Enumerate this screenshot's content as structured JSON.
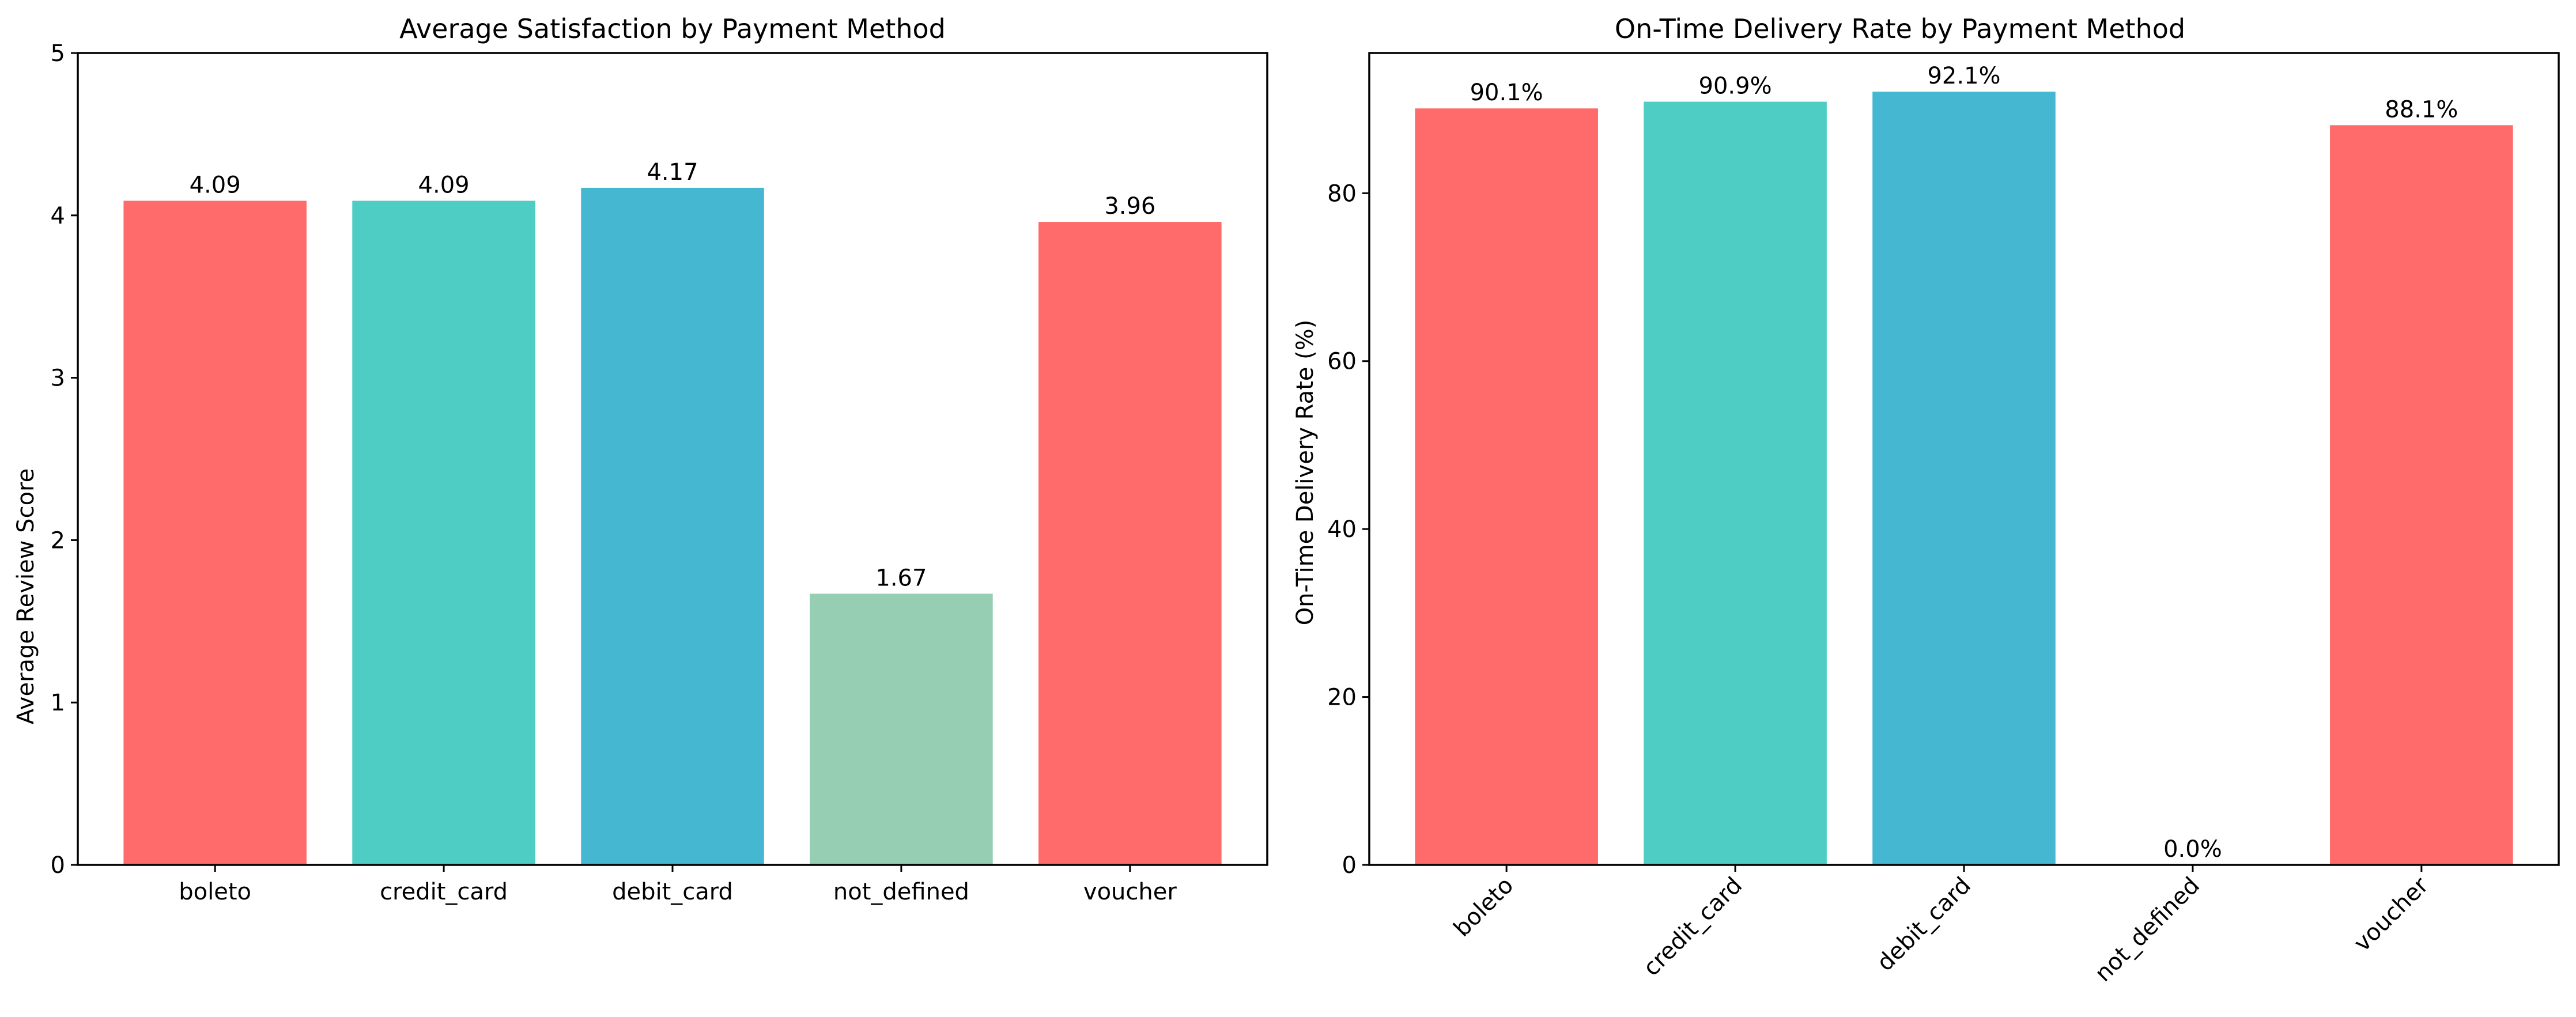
{
  "chart_data": [
    {
      "type": "bar",
      "title": "Average Satisfaction by Payment Method",
      "xlabel": "",
      "ylabel": "Average Review Score",
      "categories": [
        "boleto",
        "credit_card",
        "debit_card",
        "not_defined",
        "voucher"
      ],
      "values": [
        4.09,
        4.09,
        4.17,
        1.67,
        3.96
      ],
      "value_labels": [
        "4.09",
        "4.09",
        "4.17",
        "1.67",
        "3.96"
      ],
      "colors": [
        "#ff6b6b",
        "#4ecdc4",
        "#45b7d1",
        "#96ceb4",
        "#ff6b6b"
      ],
      "ylim": [
        0,
        5
      ],
      "yticks": [
        0,
        1,
        2,
        3,
        4,
        5
      ],
      "ytick_labels": [
        "0",
        "1",
        "2",
        "3",
        "4",
        "5"
      ],
      "xtick_rotation": 0,
      "grid": false
    },
    {
      "type": "bar",
      "title": "On-Time Delivery Rate by Payment Method",
      "xlabel": "",
      "ylabel": "On-Time Delivery Rate (%)",
      "categories": [
        "boleto",
        "credit_card",
        "debit_card",
        "not_defined",
        "voucher"
      ],
      "values": [
        90.1,
        90.9,
        92.1,
        0.0,
        88.1
      ],
      "value_labels": [
        "90.1%",
        "90.9%",
        "92.1%",
        "0.0%",
        "88.1%"
      ],
      "colors": [
        "#ff6b6b",
        "#4ecdc4",
        "#45b7d1",
        "#96ceb4",
        "#ff6b6b"
      ],
      "ylim": [
        0,
        96.7
      ],
      "yticks": [
        0,
        20,
        40,
        60,
        80
      ],
      "ytick_labels": [
        "0",
        "20",
        "40",
        "60",
        "80"
      ],
      "xtick_rotation": 45,
      "grid": false
    }
  ]
}
